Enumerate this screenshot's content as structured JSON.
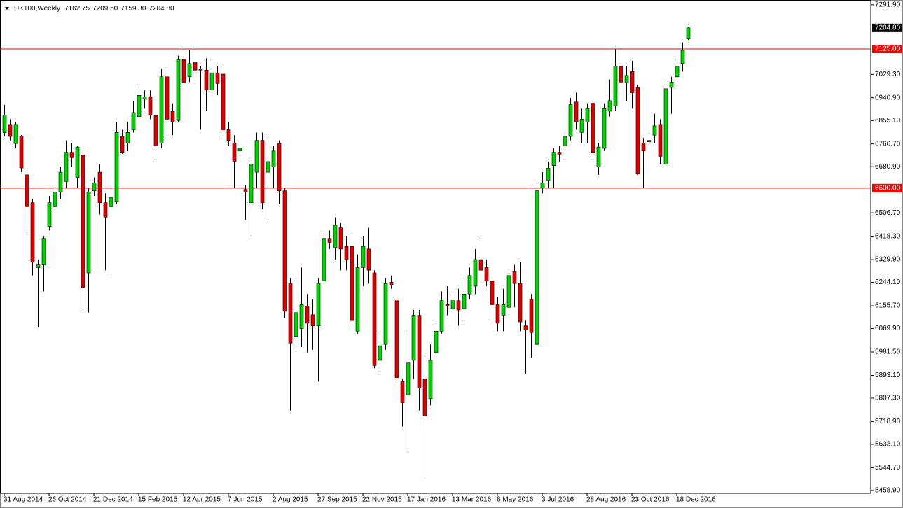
{
  "chart_data": {
    "type": "candlestick",
    "title": "UK100,Weekly",
    "quote_labels": [
      "7162.75",
      "7209.50",
      "7159.30",
      "7204.80"
    ],
    "categories": [
      "31 Aug 2014",
      null,
      null,
      null,
      null,
      null,
      null,
      null,
      "26 Oct 2014",
      null,
      null,
      null,
      null,
      null,
      null,
      null,
      "21 Dec 2014",
      null,
      null,
      null,
      null,
      null,
      null,
      null,
      "15 Feb 2015",
      null,
      null,
      null,
      null,
      null,
      null,
      null,
      "12 Apr 2015",
      null,
      null,
      null,
      null,
      null,
      null,
      null,
      "7 Jun 2015",
      null,
      null,
      null,
      null,
      null,
      null,
      null,
      "2 Aug 2015",
      null,
      null,
      null,
      null,
      null,
      null,
      null,
      "27 Sep 2015",
      null,
      null,
      null,
      null,
      null,
      null,
      null,
      "22 Nov 2015",
      null,
      null,
      null,
      null,
      null,
      null,
      null,
      "17 Jan 2016",
      null,
      null,
      null,
      null,
      null,
      null,
      null,
      "13 Mar 2016",
      null,
      null,
      null,
      null,
      null,
      null,
      null,
      "8 May 2016",
      null,
      null,
      null,
      null,
      null,
      null,
      null,
      "3 Jul 2016",
      null,
      null,
      null,
      null,
      null,
      null,
      null,
      "28 Aug 2016",
      null,
      null,
      null,
      null,
      null,
      null,
      null,
      "23 Oct 2016",
      null,
      null,
      null,
      null,
      null,
      null,
      null,
      "18 Dec 2016",
      null,
      null
    ],
    "open": [
      6809,
      6840,
      6768,
      6795,
      6650,
      6545,
      6300,
      6310,
      6455,
      6530,
      6585,
      6625,
      6735,
      6640,
      6725,
      6280,
      6590,
      6660,
      6545,
      6530,
      6550,
      6795,
      6770,
      6820,
      6870,
      6935,
      6945,
      6875,
      6770,
      7020,
      6890,
      6855,
      7085,
      7020,
      7075,
      7050,
      7045,
      6970,
      7035,
      7030,
      6820,
      6770,
      6740,
      6595,
      6545,
      6660,
      6780,
      6660,
      6680,
      6770,
      6590,
      6240,
      6040,
      6070,
      6155,
      6122,
      6080,
      6250,
      6410,
      6375,
      6450,
      6380,
      6380,
      6060,
      6300,
      6370,
      6280,
      5950,
      6010,
      6245,
      6175,
      5870,
      5820,
      5950,
      6120,
      5880,
      5805,
      5980,
      6060,
      6160,
      6145,
      6175,
      6145,
      6200,
      6230,
      6330,
      6300,
      6250,
      6160,
      6120,
      6150,
      6285,
      6240,
      6080,
      6180,
      6010,
      6600,
      6630,
      6685,
      6735,
      6760,
      6795,
      6925,
      6810,
      6850,
      6920,
      6680,
      6750,
      6890,
      6910,
      7060,
      6998,
      7040,
      6980,
      6770,
      6780,
      6800,
      6840,
      6690,
      6980,
      7020,
      7070,
      7162.75
    ],
    "high": [
      6914,
      6860,
      6850,
      6800,
      6660,
      6560,
      6330,
      6420,
      6570,
      6610,
      6680,
      6780,
      6770,
      6760,
      6740,
      6600,
      6640,
      6690,
      6580,
      6600,
      6850,
      6820,
      6850,
      6930,
      6980,
      6970,
      6970,
      6880,
      7050,
      7040,
      6920,
      7100,
      7130,
      7120,
      7130,
      7060,
      7090,
      7080,
      7060,
      7060,
      6850,
      6800,
      6770,
      6610,
      6700,
      6810,
      6810,
      6790,
      6760,
      6780,
      6600,
      6260,
      6260,
      6300,
      6200,
      6180,
      6260,
      6430,
      6440,
      6490,
      6470,
      6420,
      6440,
      6350,
      6420,
      6450,
      6290,
      6060,
      6260,
      6270,
      6180,
      5880,
      6050,
      6140,
      6140,
      5960,
      6010,
      6090,
      6210,
      6230,
      6210,
      6220,
      6260,
      6300,
      6370,
      6420,
      6330,
      6270,
      6190,
      6220,
      6280,
      6310,
      6320,
      6100,
      6200,
      6620,
      6660,
      6700,
      6750,
      6760,
      6810,
      6940,
      6960,
      6900,
      6920,
      6930,
      6770,
      6920,
      7010,
      7125,
      7125,
      7060,
      7080,
      6990,
      6790,
      6810,
      6880,
      6860,
      6980,
      7020,
      7080,
      7150,
      7209.5
    ],
    "low": [
      6795,
      6780,
      6750,
      6660,
      6430,
      6270,
      6074,
      6210,
      6440,
      6510,
      6560,
      6600,
      6680,
      6600,
      6130,
      6130,
      6570,
      6500,
      6290,
      6260,
      6540,
      6730,
      6740,
      6810,
      6860,
      6900,
      6860,
      6700,
      6750,
      6790,
      6800,
      6850,
      6980,
      7000,
      7010,
      6820,
      6890,
      6950,
      6950,
      6790,
      6760,
      6600,
      6720,
      6480,
      6410,
      6600,
      6520,
      6480,
      6600,
      6540,
      6110,
      5760,
      5990,
      6000,
      5980,
      5990,
      5870,
      6240,
      6370,
      6330,
      6290,
      6290,
      6080,
      6050,
      6230,
      6240,
      5920,
      5900,
      5990,
      6220,
      5870,
      5700,
      5610,
      5880,
      5760,
      5510,
      5780,
      5970,
      6050,
      6120,
      6080,
      6080,
      6090,
      6180,
      6200,
      6250,
      6230,
      6100,
      6060,
      6060,
      6120,
      6150,
      6060,
      5900,
      5960,
      5960,
      6580,
      6600,
      6600,
      6700,
      6700,
      6780,
      6820,
      6770,
      6770,
      6700,
      6650,
      6740,
      6870,
      6890,
      6960,
      6930,
      6900,
      6650,
      6600,
      6740,
      6770,
      6690,
      6680,
      6880,
      6990,
      7040,
      7159.3
    ],
    "close": [
      6875,
      6795,
      6840,
      6676,
      6530,
      6320,
      6310,
      6410,
      6545,
      6585,
      6660,
      6735,
      6715,
      6755,
      6225,
      6585,
      6620,
      6545,
      6490,
      6565,
      6810,
      6735,
      6810,
      6885,
      6950,
      6945,
      6875,
      6760,
      7020,
      6860,
      6850,
      7085,
      6998,
      7070,
      7045,
      7045,
      6970,
      7035,
      6995,
      6820,
      6780,
      6700,
      6750,
      6585,
      6690,
      6780,
      6545,
      6700,
      6740,
      6590,
      6135,
      6015,
      6130,
      6160,
      6090,
      6080,
      6240,
      6410,
      6395,
      6460,
      6370,
      6330,
      6100,
      6300,
      6380,
      6290,
      5930,
      6005,
      6240,
      6235,
      5885,
      5790,
      5940,
      6120,
      5845,
      5740,
      5950,
      6060,
      6175,
      6155,
      6175,
      6140,
      6200,
      6270,
      6330,
      6290,
      6250,
      6160,
      6090,
      6160,
      6270,
      6240,
      6095,
      6065,
      6055,
      6590,
      6620,
      6675,
      6735,
      6728,
      6795,
      6915,
      6850,
      6860,
      6900,
      6735,
      6755,
      6900,
      6930,
      7060,
      7000,
      7025,
      6960,
      6655,
      6740,
      6775,
      6835,
      6720,
      6975,
      7000,
      7060,
      7120,
      7204.8
    ],
    "up_color": "#00d400",
    "down_color": "#e00000",
    "ylim": [
      5448,
      7310
    ],
    "yticks": [
      {
        "value": 7291.9,
        "label": "7291.90"
      },
      {
        "value": 7029.3,
        "label": "7029.30"
      },
      {
        "value": 6940.9,
        "label": "6940.90"
      },
      {
        "value": 6855.1,
        "label": "6855.10"
      },
      {
        "value": 6766.7,
        "label": "6766.70"
      },
      {
        "value": 6680.9,
        "label": "6680.90"
      },
      {
        "value": 6506.7,
        "label": "6506.70"
      },
      {
        "value": 6418.3,
        "label": "6418.30"
      },
      {
        "value": 6329.9,
        "label": "6329.90"
      },
      {
        "value": 6244.1,
        "label": "6244.10"
      },
      {
        "value": 6155.7,
        "label": "6155.70"
      },
      {
        "value": 6069.9,
        "label": "6069.90"
      },
      {
        "value": 5981.5,
        "label": "5981.50"
      },
      {
        "value": 5893.1,
        "label": "5893.10"
      },
      {
        "value": 5807.3,
        "label": "5807.30"
      },
      {
        "value": 5718.9,
        "label": "5718.90"
      },
      {
        "value": 5633.1,
        "label": "5633.10"
      },
      {
        "value": 5544.7,
        "label": "5544.70"
      },
      {
        "value": 5458.9,
        "label": "5458.90"
      }
    ],
    "hlines": [
      {
        "value": 7125,
        "label": "7125.00",
        "color": "#ff0000"
      },
      {
        "value": 6600,
        "label": "6600.00",
        "color": "#ff0000"
      }
    ],
    "current_price": {
      "value": 7204.8,
      "label": "7204.80"
    },
    "grid": false
  }
}
